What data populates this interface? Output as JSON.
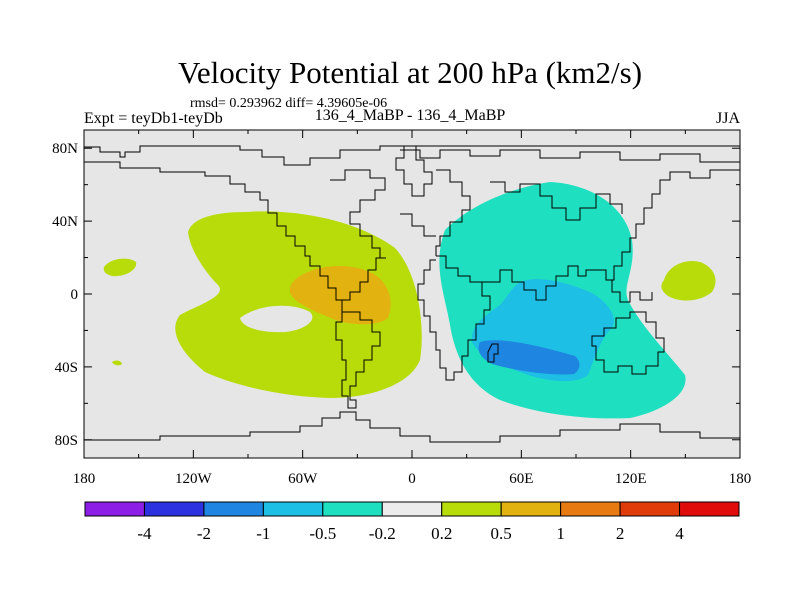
{
  "chart_data": {
    "type": "heatmap",
    "title": "Velocity Potential at 200 hPa (km2/s)",
    "stats_line": "rmsd= 0.293962 diff= 4.39605e-06",
    "left_subtitle": "Expt = teyDb1-teyDb",
    "center_subtitle": "136_4_MaBP - 136_4_MaBP",
    "right_subtitle": "JJA",
    "x_range": [
      -180,
      180
    ],
    "y_range": [
      -90,
      90
    ],
    "x_ticks": [
      {
        "value": -180,
        "label": "180"
      },
      {
        "value": -120,
        "label": "120W"
      },
      {
        "value": -60,
        "label": "60W"
      },
      {
        "value": 0,
        "label": "0"
      },
      {
        "value": 60,
        "label": "60E"
      },
      {
        "value": 120,
        "label": "120E"
      },
      {
        "value": 180,
        "label": "180"
      }
    ],
    "y_ticks": [
      {
        "value": 80,
        "label": "80N"
      },
      {
        "value": 40,
        "label": "40N"
      },
      {
        "value": 0,
        "label": "0"
      },
      {
        "value": -40,
        "label": "40S"
      },
      {
        "value": -80,
        "label": "80S"
      }
    ],
    "colorbar": {
      "levels": [
        "-4",
        "-2",
        "-1",
        "-0.5",
        "-0.2",
        "0.2",
        "0.5",
        "1",
        "2",
        "4"
      ],
      "colors": [
        "#8c1ee6",
        "#2c32e0",
        "#1e86e0",
        "#1ebfe4",
        "#1ee0c0",
        "#ececec",
        "#b8dc0a",
        "#e2b210",
        "#e87a12",
        "#e03c0a",
        "#e00c0c"
      ]
    },
    "contour_regions": [
      {
        "name": "positive-west-pacific-region",
        "level": "0.2 to 0.5",
        "color": "#b8dc0a"
      },
      {
        "name": "positive-small-west-region",
        "level": "0.2 to 0.5",
        "color": "#b8dc0a"
      },
      {
        "name": "positive-americas-core-region",
        "level": "0.5 to 1",
        "color": "#e2b210"
      },
      {
        "name": "negative-africa-asia-region",
        "level": "-0.5 to -0.2",
        "color": "#1ee0c0"
      },
      {
        "name": "negative-indian-ocean-core-region",
        "level": "-1 to -0.5",
        "color": "#1ebfe4"
      },
      {
        "name": "negative-deep-core-region",
        "level": "-2 to -1",
        "color": "#1e86e0"
      },
      {
        "name": "positive-east-pacific-region",
        "level": "0.2 to 0.5",
        "color": "#b8dc0a"
      }
    ],
    "background_color": "#e6e6e6"
  }
}
